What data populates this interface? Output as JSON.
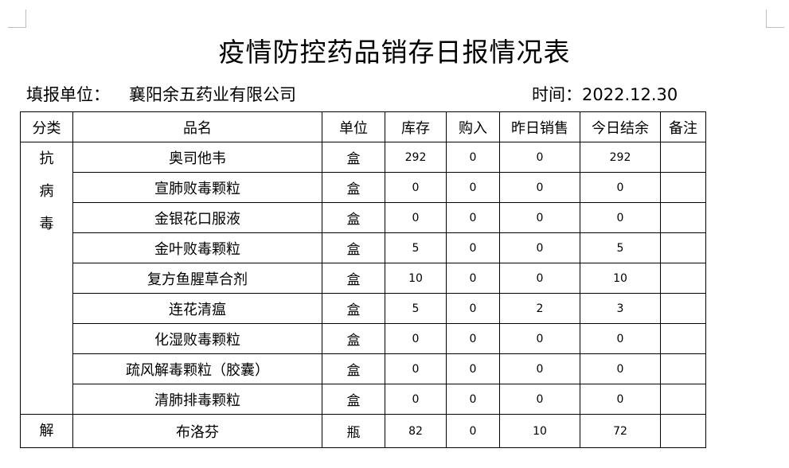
{
  "title": "疫情防控药品销存日报情况表",
  "reporter_label": "填报单位：",
  "reporter_value": "襄阳余五药业有限公司",
  "date_label": "时间：",
  "date_value": "2022.12.30",
  "headers": [
    "分类",
    "品名",
    "单位",
    "库存",
    "购入",
    "昨日销售",
    "今日结余",
    "备注"
  ],
  "groups": [
    {
      "category": [
        "抗",
        "病",
        "毒"
      ],
      "rows": [
        {
          "name": "奥司他韦",
          "unit": "盒",
          "stock": "292",
          "purchase": "0",
          "sold_yesterday": "0",
          "balance_today": "292",
          "remark": ""
        },
        {
          "name": "宣肺败毒颗粒",
          "unit": "盒",
          "stock": "0",
          "purchase": "0",
          "sold_yesterday": "0",
          "balance_today": "0",
          "remark": ""
        },
        {
          "name": "金银花口服液",
          "unit": "盒",
          "stock": "0",
          "purchase": "0",
          "sold_yesterday": "0",
          "balance_today": "0",
          "remark": ""
        },
        {
          "name": "金叶败毒颗粒",
          "unit": "盒",
          "stock": "5",
          "purchase": "0",
          "sold_yesterday": "0",
          "balance_today": "5",
          "remark": ""
        },
        {
          "name": "复方鱼腥草合剂",
          "unit": "盒",
          "stock": "10",
          "purchase": "0",
          "sold_yesterday": "0",
          "balance_today": "10",
          "remark": ""
        },
        {
          "name": "连花清瘟",
          "unit": "盒",
          "stock": "5",
          "purchase": "0",
          "sold_yesterday": "2",
          "balance_today": "3",
          "remark": ""
        },
        {
          "name": "化湿败毒颗粒",
          "unit": "盒",
          "stock": "0",
          "purchase": "0",
          "sold_yesterday": "0",
          "balance_today": "0",
          "remark": ""
        },
        {
          "name": "疏风解毒颗粒（胶囊）",
          "unit": "盒",
          "stock": "0",
          "purchase": "0",
          "sold_yesterday": "0",
          "balance_today": "0",
          "remark": ""
        },
        {
          "name": "清肺排毒颗粒",
          "unit": "盒",
          "stock": "0",
          "purchase": "0",
          "sold_yesterday": "0",
          "balance_today": "0",
          "remark": ""
        }
      ]
    },
    {
      "category": [
        "解"
      ],
      "rows": [
        {
          "name": "布洛芬",
          "unit": "瓶",
          "stock": "82",
          "purchase": "0",
          "sold_yesterday": "10",
          "balance_today": "72",
          "remark": ""
        }
      ]
    }
  ]
}
